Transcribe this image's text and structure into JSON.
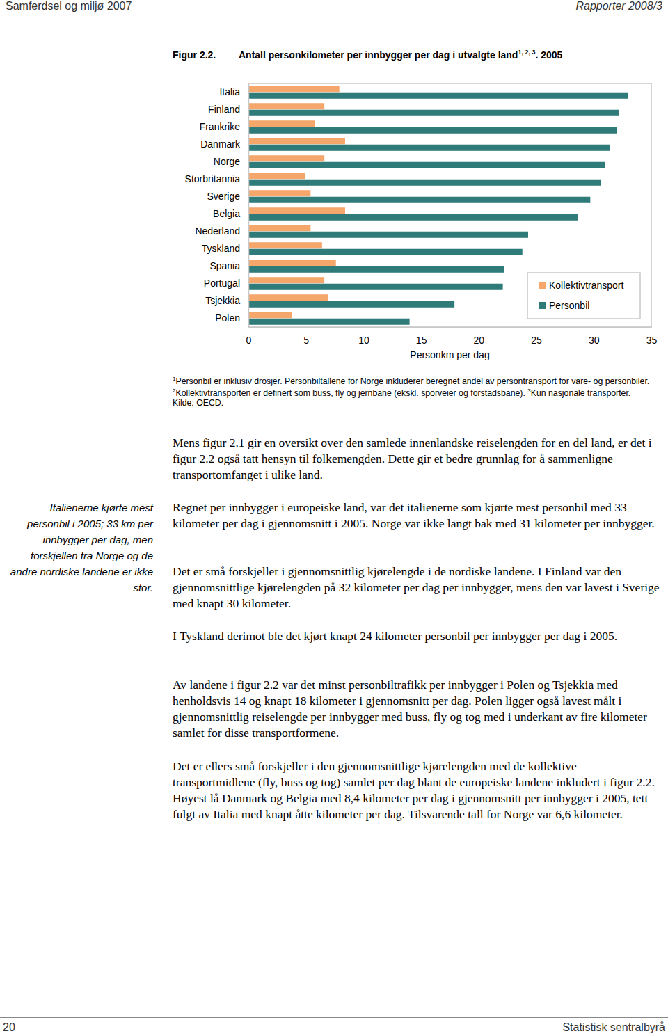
{
  "header": {
    "left": "Samferdsel og miljø 2007",
    "right": "Rapporter 2008/3"
  },
  "figure": {
    "label": "Figur 2.2.",
    "title": "Antall personkilometer per innbygger per dag i utvalgte land",
    "title_sup": "1, 2, 3",
    "title_suffix": ". 2005",
    "footnotes": [
      {
        "mark": "1",
        "text": "Personbil er inklusiv drosjer. Personbiltallene for Norge inkluderer beregnet andel av persontransport for vare- og personbiler."
      },
      {
        "mark": "2",
        "text": "Kollektivtransporten er definert som buss, fly og jernbane (ekskl. sporveier og forstadsbane)."
      },
      {
        "mark": "3",
        "text": "Kun nasjonale transporter."
      }
    ],
    "source": "Kilde: OECD."
  },
  "chart_data": {
    "type": "bar",
    "orientation": "horizontal",
    "categories": [
      "Italia",
      "Finland",
      "Frankrike",
      "Danmark",
      "Norge",
      "Storbritannia",
      "Sverige",
      "Belgia",
      "Nederland",
      "Tyskland",
      "Spania",
      "Portugal",
      "Tsjekkia",
      "Polen"
    ],
    "series": [
      {
        "name": "Kollektivtransport",
        "color": "#f5a66b",
        "values": [
          7.9,
          6.6,
          5.8,
          8.4,
          6.6,
          4.9,
          5.4,
          8.4,
          5.4,
          6.4,
          7.6,
          6.6,
          6.9,
          3.8
        ]
      },
      {
        "name": "Personbil",
        "color": "#2f7b7a",
        "values": [
          33,
          32.2,
          32,
          31.4,
          31,
          30.6,
          29.7,
          28.6,
          24.3,
          23.8,
          22.2,
          22.1,
          17.9,
          14
        ]
      }
    ],
    "x_label": "Personkm per dag",
    "xlim": [
      0,
      35
    ],
    "xticks": [
      0,
      5,
      10,
      15,
      20,
      25,
      30,
      35
    ],
    "grid": false,
    "legend": "lower right"
  },
  "sidebar": "Italienerne kjørte mest personbil i 2005; 33 km per innbygger per dag, men forskjellen fra Norge og de andre nordiske landene er ikke stor.",
  "body": {
    "paragraphs": [
      "Mens figur 2.1 gir en oversikt over den samlede innenlandske reiselengden for en del land, er det i figur 2.2 også tatt hensyn til folkemengden. Dette gir et bedre grunnlag for å sammenligne transportomfanget i ulike land.",
      "Regnet per innbygger i europeiske land, var det italienerne som kjørte mest personbil med 33 kilometer per dag i gjennomsnitt i 2005. Norge var ikke langt bak med 31 kilometer per innbygger.",
      "Det er små forskjeller i gjennomsnittlig kjørelengde i de nordiske landene. I Finland var den gjennomsnittlige kjørelengden på 32 kilometer per dag per innbygger, mens den var lavest i Sverige med knapt 30 kilometer.",
      "I Tyskland derimot ble det kjørt knapt 24 kilometer personbil per innbygger per dag i 2005.",
      "Av landene i figur 2.2 var det minst personbiltrafikk per innbygger i Polen og Tsjekkia med henholdsvis 14 og knapt 18 kilometer i gjennomsnitt per dag. Polen ligger også lavest målt i gjennomsnittlig reiselengde per innbygger med buss, fly og tog med i underkant av fire kilometer samlet for disse transportformene.",
      "Det er ellers små forskjeller i den gjennomsnittlige kjørelengden med de kollektive transportmidlene (fly, buss og tog) samlet per dag blant de europeiske landene inkludert i figur 2.2. Høyest lå Danmark og Belgia med 8,4 kilometer per dag i gjennomsnitt per innbygger i 2005, tett fulgt av Italia med knapt åtte kilometer per dag. Tilsvarende tall for Norge var 6,6 kilometer."
    ]
  },
  "footer": {
    "page": "20",
    "publisher": "Statistisk sentralbyrå"
  }
}
